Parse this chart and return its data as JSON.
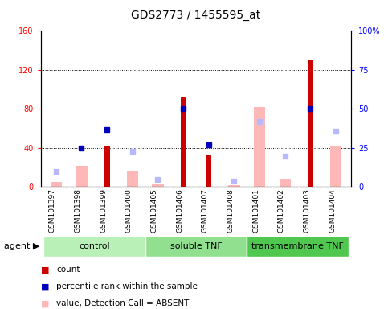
{
  "title": "GDS2773 / 1455595_at",
  "samples": [
    "GSM101397",
    "GSM101398",
    "GSM101399",
    "GSM101400",
    "GSM101405",
    "GSM101406",
    "GSM101407",
    "GSM101408",
    "GSM101401",
    "GSM101402",
    "GSM101403",
    "GSM101404"
  ],
  "groups": [
    {
      "label": "control",
      "start": 0,
      "end": 4,
      "color": "#b8f0b8"
    },
    {
      "label": "soluble TNF",
      "start": 4,
      "end": 8,
      "color": "#90e090"
    },
    {
      "label": "transmembrane TNF",
      "start": 8,
      "end": 12,
      "color": "#50c850"
    }
  ],
  "count": [
    null,
    null,
    42,
    null,
    null,
    93,
    33,
    null,
    null,
    null,
    130,
    null
  ],
  "percentile_rank": [
    null,
    25,
    37,
    null,
    null,
    50,
    27,
    null,
    null,
    null,
    50,
    null
  ],
  "value_absent": [
    5,
    22,
    null,
    17,
    3,
    null,
    null,
    2,
    82,
    8,
    null,
    42
  ],
  "rank_absent": [
    10,
    null,
    null,
    23,
    5,
    null,
    null,
    4,
    42,
    20,
    null,
    36
  ],
  "left_ylim": [
    0,
    160
  ],
  "right_ylim": [
    0,
    100
  ],
  "left_yticks": [
    0,
    40,
    80,
    120,
    160
  ],
  "right_yticks": [
    0,
    25,
    50,
    75,
    100
  ],
  "right_yticklabels": [
    "0",
    "25",
    "50",
    "75",
    "100%"
  ],
  "count_color": "#cc0000",
  "percentile_color": "#0000bb",
  "value_absent_color": "#ffb8b8",
  "rank_absent_color": "#b8b8ff",
  "plot_bg_color": "#ffffff",
  "label_bg_color": "#d0d0d0",
  "title_fontsize": 10,
  "tick_fontsize": 7,
  "label_fontsize": 6.5,
  "legend_fontsize": 7.5,
  "group_fontsize": 8
}
